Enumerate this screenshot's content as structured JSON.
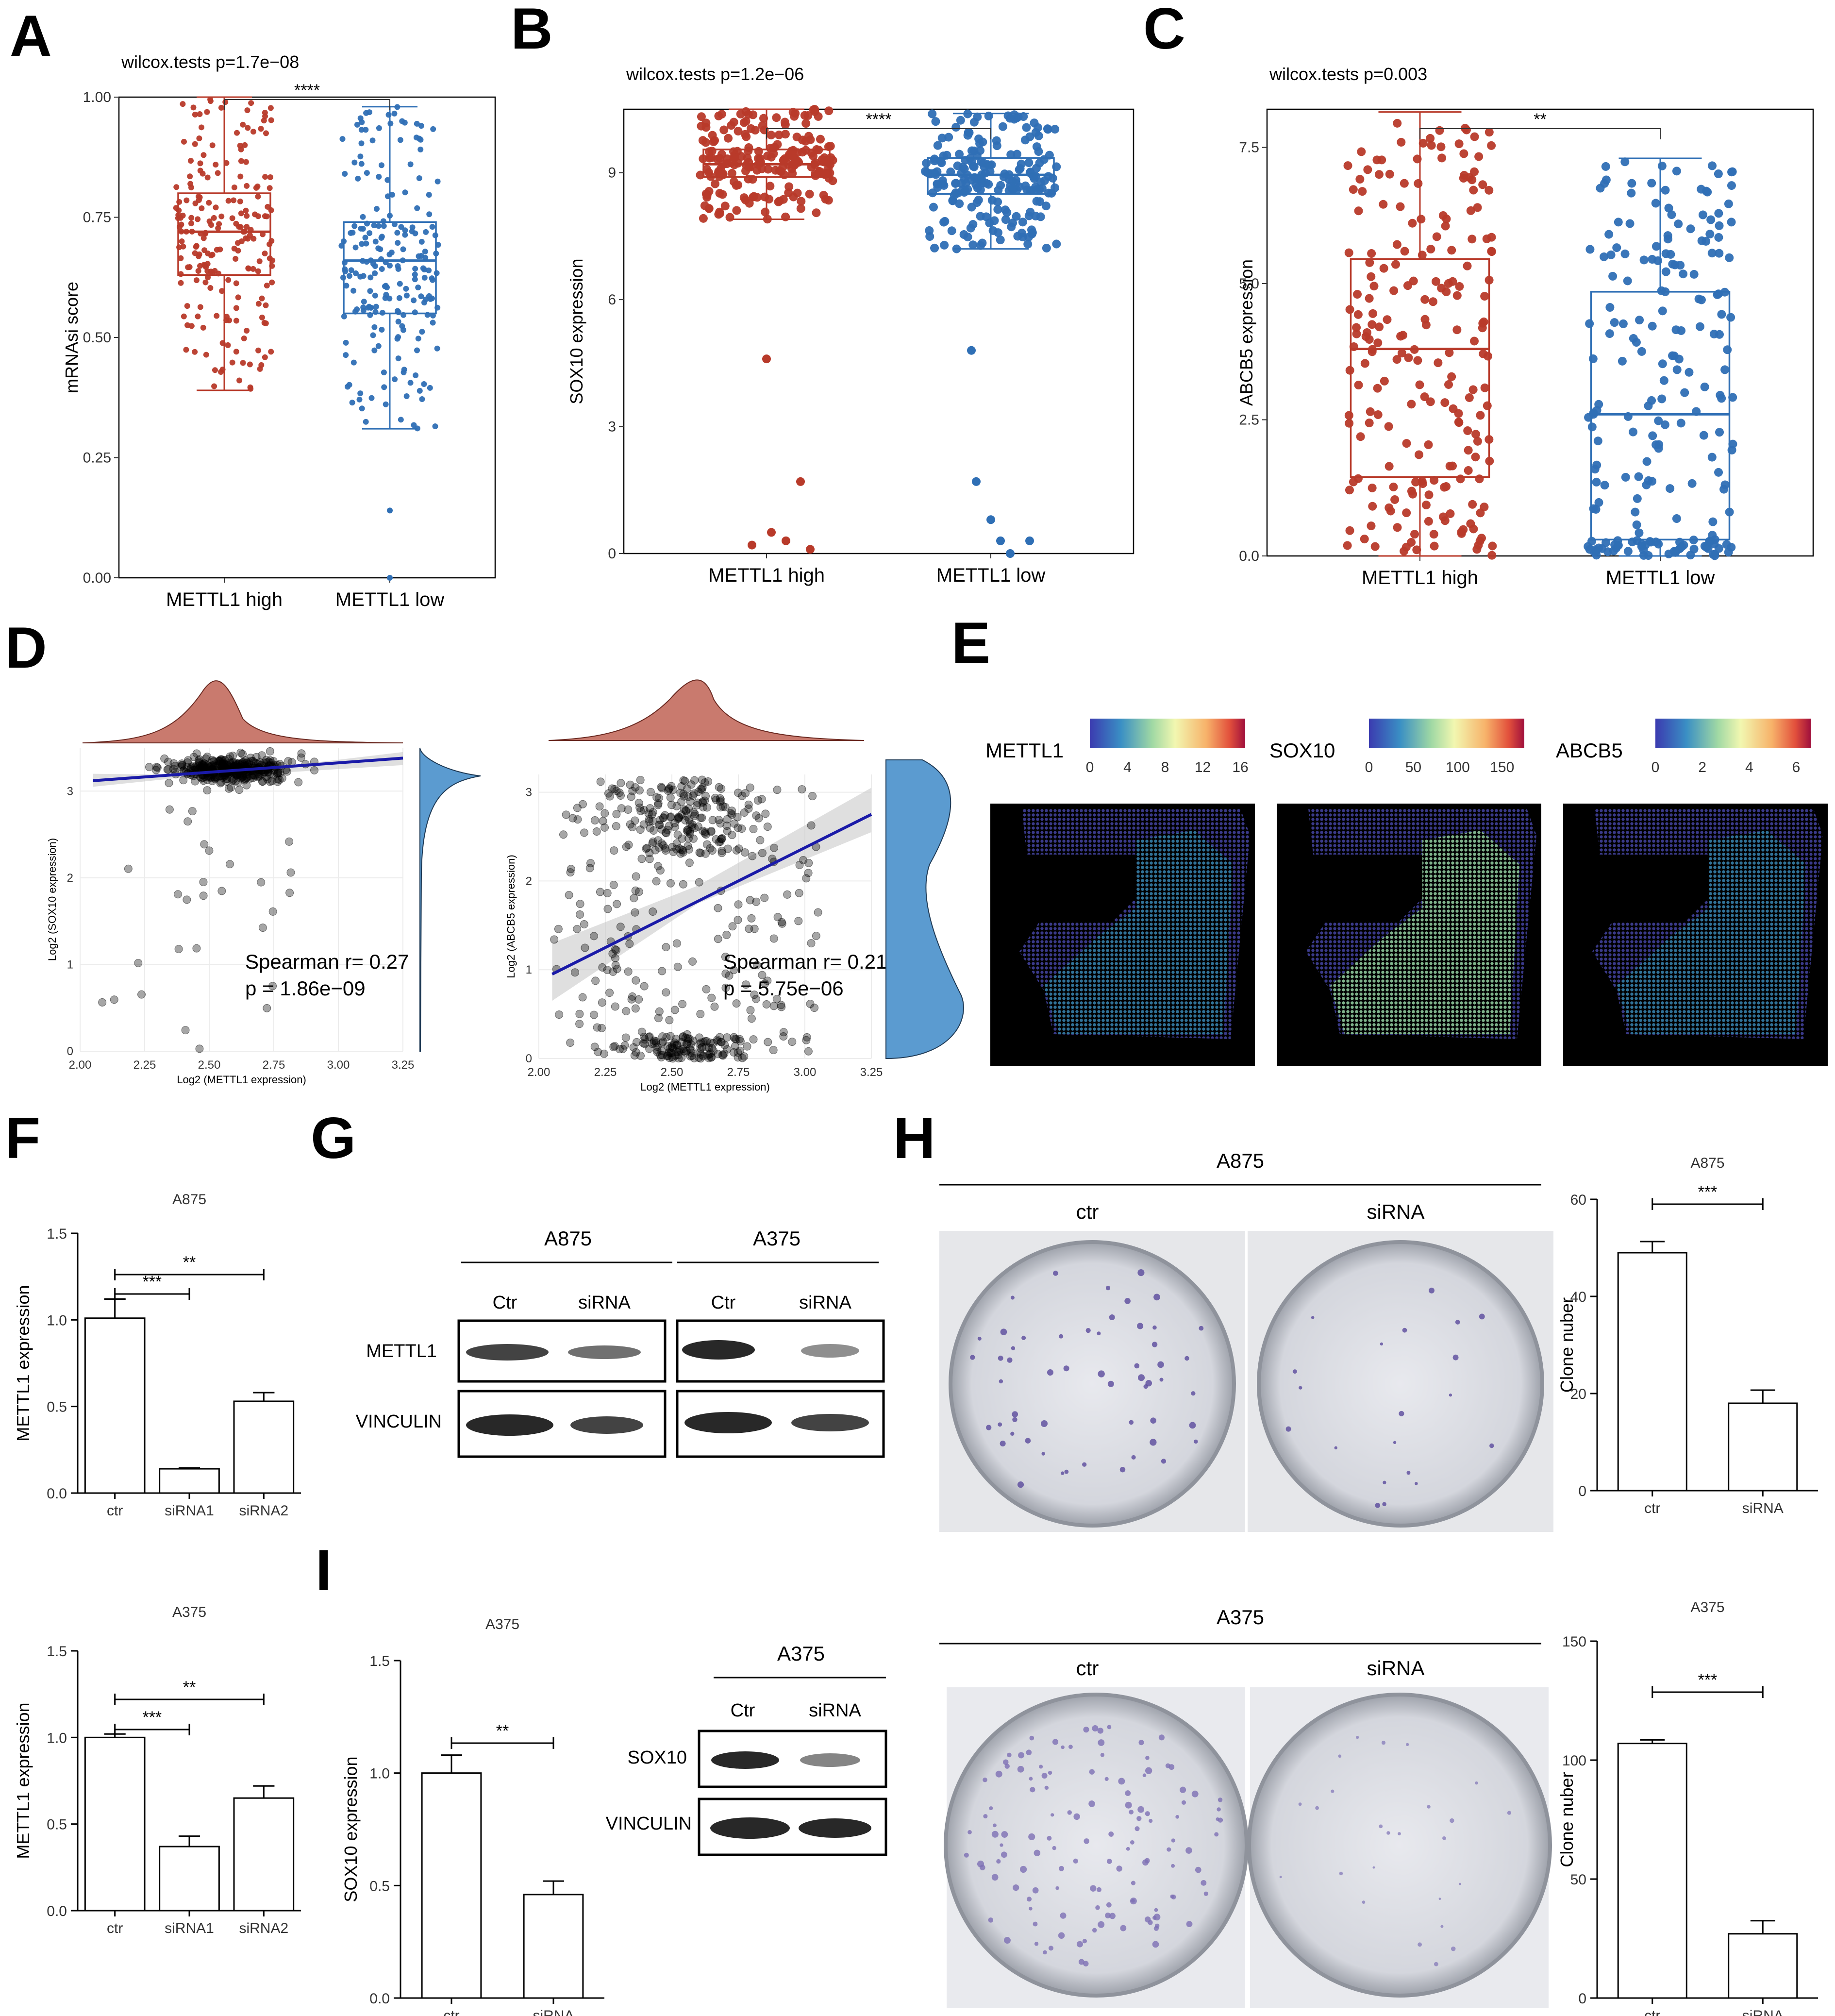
{
  "panel_letters": {
    "A": "A",
    "B": "B",
    "C": "C",
    "D": "D",
    "E": "E",
    "F": "F",
    "G": "G",
    "H": "H",
    "I": "I"
  },
  "colors": {
    "high": "#b83a2a",
    "low": "#2f6fb5",
    "density_top": "#c97a6e",
    "density_right": "#5b9bd0",
    "fit": "#1a1aa8"
  },
  "chart_data": [
    {
      "id": "A",
      "type": "box",
      "title": "wilcox.tests p=1.7e−08",
      "ylabel": "mRNAsi score",
      "xlabel": "",
      "categories": [
        "METTL1 high",
        "METTL1 low"
      ],
      "yticks": [
        "0.00",
        "0.25",
        "0.50",
        "0.75",
        "1.00"
      ],
      "ylim": [
        0,
        1.0
      ],
      "significance": "****",
      "series": [
        {
          "q1": 0.63,
          "median": 0.72,
          "q3": 0.8,
          "whisker_low": 0.39,
          "whisker_high": 1.0
        },
        {
          "q1": 0.55,
          "median": 0.66,
          "q3": 0.74,
          "whisker_low": 0.31,
          "whisker_high": 0.98
        }
      ]
    },
    {
      "id": "B",
      "type": "box",
      "title": "wilcox.tests p=1.2e−06",
      "ylabel": "SOX10 expression",
      "xlabel": "",
      "categories": [
        "METTL1 high",
        "METTL1 low"
      ],
      "yticks": [
        "0",
        "3",
        "6",
        "9"
      ],
      "ylim": [
        0,
        10.5
      ],
      "significance": "****",
      "series": [
        {
          "q1": 8.9,
          "median": 9.2,
          "q3": 9.55,
          "whisker_low": 7.9,
          "whisker_high": 10.5
        },
        {
          "q1": 8.5,
          "median": 8.95,
          "q3": 9.35,
          "whisker_low": 7.2,
          "whisker_high": 10.4
        }
      ]
    },
    {
      "id": "C",
      "type": "box",
      "title": "wilcox.tests p=0.003",
      "ylabel": "ABCB5 expression",
      "xlabel": "",
      "categories": [
        "METTL1 high",
        "METTL1 low"
      ],
      "yticks": [
        "0.0",
        "2.5",
        "5.0",
        "7.5"
      ],
      "ylim": [
        0,
        8.2
      ],
      "significance": "**",
      "series": [
        {
          "q1": 1.45,
          "median": 3.8,
          "q3": 5.45,
          "whisker_low": 0.0,
          "whisker_high": 8.15
        },
        {
          "q1": 0.3,
          "median": 2.6,
          "q3": 4.85,
          "whisker_low": 0.0,
          "whisker_high": 7.3
        }
      ]
    },
    {
      "id": "D1",
      "type": "scatter",
      "xlabel": "Log2 (METTL1 expression)",
      "ylabel": "Log2 (SOX10 expression)",
      "xticks": [
        "2.00",
        "2.25",
        "2.50",
        "2.75",
        "3.00",
        "3.25"
      ],
      "yticks": [
        "0",
        "1",
        "2",
        "3"
      ],
      "xlim": [
        2.0,
        3.25
      ],
      "ylim": [
        0,
        3.5
      ],
      "stat1": "Spearman r= 0.27",
      "stat2": "p = 1.86e−09",
      "fit": {
        "x": [
          2.05,
          3.25
        ],
        "y": [
          3.12,
          3.38
        ]
      }
    },
    {
      "id": "D2",
      "type": "scatter",
      "xlabel": "Log2 (METTL1 expression)",
      "ylabel": "Log2 (ABCB5 expression)",
      "xticks": [
        "2.00",
        "2.25",
        "2.50",
        "2.75",
        "3.00",
        "3.25"
      ],
      "yticks": [
        "0",
        "1",
        "2",
        "3"
      ],
      "xlim": [
        2.0,
        3.25
      ],
      "ylim": [
        0,
        3.2
      ],
      "stat1": "Spearman r= 0.21",
      "stat2": "p = 5.75e−06",
      "fit": {
        "x": [
          2.05,
          3.25
        ],
        "y": [
          0.95,
          2.75
        ]
      }
    },
    {
      "id": "E",
      "type": "heatmap",
      "legends": [
        {
          "name": "METTL1",
          "ticks": [
            "0",
            "4",
            "8",
            "12",
            "16"
          ]
        },
        {
          "name": "SOX10",
          "ticks": [
            "0",
            "50",
            "100",
            "150"
          ]
        },
        {
          "name": "ABCB5",
          "ticks": [
            "0",
            "2",
            "4",
            "6"
          ]
        }
      ]
    },
    {
      "id": "F1",
      "type": "bar",
      "title": "A875",
      "ylabel": "METTL1 expression",
      "categories": [
        "ctr",
        "siRNA1",
        "siRNA2"
      ],
      "values": [
        1.01,
        0.14,
        0.53
      ],
      "errors": [
        0.11,
        0.005,
        0.05
      ],
      "yticks": [
        "0.0",
        "0.5",
        "1.0",
        "1.5"
      ],
      "ylim": [
        0,
        1.5
      ],
      "brackets": [
        {
          "from": 0,
          "to": 1,
          "label": "***"
        },
        {
          "from": 0,
          "to": 2,
          "label": "**"
        }
      ]
    },
    {
      "id": "F2",
      "type": "bar",
      "title": "A375",
      "ylabel": "METTL1 expression",
      "categories": [
        "ctr",
        "siRNA1",
        "siRNA2"
      ],
      "values": [
        1.0,
        0.37,
        0.65
      ],
      "errors": [
        0.02,
        0.06,
        0.07
      ],
      "yticks": [
        "0.0",
        "0.5",
        "1.0",
        "1.5"
      ],
      "ylim": [
        0,
        1.5
      ],
      "brackets": [
        {
          "from": 0,
          "to": 1,
          "label": "***"
        },
        {
          "from": 0,
          "to": 2,
          "label": "**"
        }
      ]
    },
    {
      "id": "I",
      "type": "bar",
      "title": "A375",
      "ylabel": "SOX10 expression",
      "categories": [
        "ctr",
        "siRNA"
      ],
      "values": [
        1.0,
        0.46
      ],
      "errors": [
        0.08,
        0.06
      ],
      "yticks": [
        "0.0",
        "0.5",
        "1.0",
        "1.5"
      ],
      "ylim": [
        0,
        1.5
      ],
      "brackets": [
        {
          "from": 0,
          "to": 1,
          "label": "**"
        }
      ]
    },
    {
      "id": "H1",
      "type": "bar",
      "title": "A875",
      "ylabel": "Clone nuber",
      "categories": [
        "ctr",
        "siRNA"
      ],
      "values": [
        49,
        18
      ],
      "errors": [
        2.3,
        2.7
      ],
      "yticks": [
        "0",
        "20",
        "40",
        "60"
      ],
      "ylim": [
        0,
        60
      ],
      "brackets": [
        {
          "from": 0,
          "to": 1,
          "label": "***"
        }
      ]
    },
    {
      "id": "H2",
      "type": "bar",
      "title": "A375",
      "ylabel": "Clone nuber",
      "categories": [
        "ctr",
        "siRNA"
      ],
      "values": [
        107,
        27
      ],
      "errors": [
        1.5,
        5.5
      ],
      "yticks": [
        "0",
        "50",
        "100",
        "150"
      ],
      "ylim": [
        0,
        150
      ],
      "brackets": [
        {
          "from": 0,
          "to": 1,
          "label": "***"
        }
      ]
    }
  ],
  "blot_G": {
    "groups": [
      "A875",
      "A375"
    ],
    "lanes": [
      "Ctr",
      "siRNA"
    ],
    "rows": [
      "METTL1",
      "VINCULIN"
    ]
  },
  "blot_I": {
    "group": "A375",
    "lanes": [
      "Ctr",
      "siRNA"
    ],
    "rows": [
      "SOX10",
      "VINCULIN"
    ]
  },
  "plates_H": {
    "top": {
      "group": "A875",
      "labels": [
        "ctr",
        "siRNA"
      ]
    },
    "bottom": {
      "group": "A375",
      "labels": [
        "ctr",
        "siRNA"
      ]
    }
  }
}
